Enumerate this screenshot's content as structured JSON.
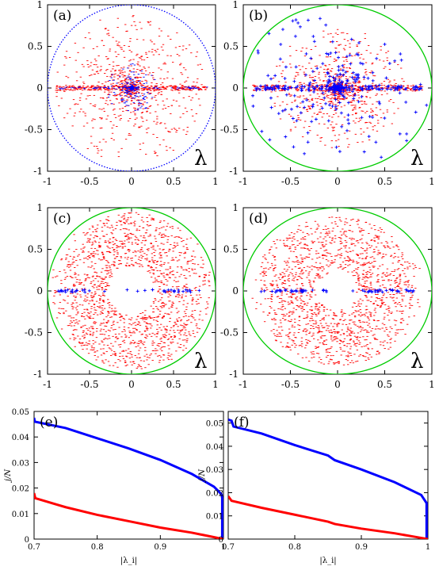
{
  "chart_data": [
    {
      "id": "a",
      "type": "scatter",
      "panel_label": "(a)",
      "corner_label": "λ",
      "xlim": [
        -1,
        1
      ],
      "ylim": [
        -1,
        1
      ],
      "xticks": [
        "-1",
        "-0.5",
        "0",
        "0.5",
        "1"
      ],
      "yticks": [
        "1",
        "0.5",
        "0",
        "-0.5",
        "-1"
      ],
      "circle": {
        "radius": 1,
        "color": "#0000ff"
      },
      "series": [
        {
          "color": "#ff0000",
          "marker": "dash",
          "spread": 0.75,
          "count": 1100,
          "core": 0.12
        },
        {
          "color": "#0000ff",
          "marker": "dash",
          "spread": 0.25,
          "count": 250,
          "core": 0.05
        }
      ]
    },
    {
      "id": "b",
      "type": "scatter",
      "panel_label": "(b)",
      "corner_label": "λ",
      "xlim": [
        -1,
        1
      ],
      "ylim": [
        -1,
        1
      ],
      "xticks": [
        "-1",
        "-0.5",
        "0",
        "0.5",
        "1"
      ],
      "yticks": [
        "1",
        "0.5",
        "0",
        "-0.5",
        "-1"
      ],
      "circle": {
        "radius": 1,
        "color": "#00cc00"
      },
      "series": [
        {
          "color": "#ff0000",
          "marker": "dash",
          "spread": 0.6,
          "count": 1100,
          "core": 0.15
        },
        {
          "color": "#0000ff",
          "marker": "plus",
          "spread": 0.95,
          "count": 380,
          "core": 0.1
        }
      ]
    },
    {
      "id": "c",
      "type": "scatter",
      "panel_label": "(c)",
      "corner_label": "λ",
      "xlim": [
        -1,
        1
      ],
      "ylim": [
        -1,
        1
      ],
      "xticks": [
        "-1",
        "-0.5",
        "0",
        "0.5",
        "1"
      ],
      "yticks": [
        "1",
        "0.5",
        "0",
        "-0.5",
        "-1"
      ],
      "circle": {
        "radius": 1,
        "color": "#00cc00"
      },
      "hole": 0.28,
      "series": [
        {
          "color": "#ff0000",
          "marker": "dash",
          "spread": 0.8,
          "count": 1500,
          "core": 0.0
        },
        {
          "color": "#0000ff",
          "marker": "plus",
          "spread": 0.9,
          "count": 40,
          "core": 0.0
        }
      ]
    },
    {
      "id": "d",
      "type": "scatter",
      "panel_label": "(d)",
      "corner_label": "λ",
      "xlim": [
        -1,
        1
      ],
      "ylim": [
        -1,
        1
      ],
      "xticks": [
        "-1",
        "-0.5",
        "0",
        "0.5",
        "1"
      ],
      "yticks": [
        "1",
        "0.5",
        "0",
        "-0.5",
        "-1"
      ],
      "circle": {
        "radius": 1,
        "color": "#00cc00"
      },
      "hole": 0.22,
      "series": [
        {
          "color": "#ff0000",
          "marker": "dash",
          "spread": 0.75,
          "count": 1500,
          "core": 0.0
        },
        {
          "color": "#0000ff",
          "marker": "plus",
          "spread": 0.85,
          "count": 60,
          "core": 0.0
        }
      ]
    },
    {
      "id": "e",
      "type": "line",
      "panel_label": "(e)",
      "xlabel": "|λ_i|",
      "ylabel": "j/N",
      "xlim": [
        0.7,
        1.0
      ],
      "ylim": [
        0,
        0.05
      ],
      "xticks": [
        "0.7",
        "0.8",
        "0.9",
        "1"
      ],
      "yticks": [
        "0.05",
        "0.04",
        "0.03",
        "0.02",
        "0.01",
        "0"
      ],
      "series": [
        {
          "color": "#0000ff",
          "x": [
            0.7,
            0.701,
            0.75,
            0.8,
            0.85,
            0.9,
            0.95,
            0.985,
            0.997,
            0.998,
            0.998
          ],
          "y": [
            0.0475,
            0.046,
            0.0435,
            0.0395,
            0.0355,
            0.031,
            0.0255,
            0.0205,
            0.0175,
            0.016,
            0
          ]
        },
        {
          "color": "#ff0000",
          "x": [
            0.7,
            0.702,
            0.75,
            0.8,
            0.85,
            0.9,
            0.95,
            0.98,
            1.0
          ],
          "y": [
            0.018,
            0.016,
            0.0125,
            0.0095,
            0.007,
            0.0045,
            0.0025,
            0.001,
            0
          ]
        }
      ]
    },
    {
      "id": "f",
      "type": "line",
      "panel_label": "(f)",
      "xlabel": "|λ_i|",
      "ylabel": "j/N",
      "xlim": [
        0.7,
        1.0
      ],
      "ylim": [
        0,
        0.055
      ],
      "xticks": [
        "0.7",
        "0.8",
        "0.9",
        "1"
      ],
      "yticks": [
        "0.05",
        "0.04",
        "0.03",
        "0.02",
        "0.01",
        "0"
      ],
      "series": [
        {
          "color": "#0000ff",
          "x": [
            0.7,
            0.705,
            0.708,
            0.75,
            0.8,
            0.85,
            0.86,
            0.9,
            0.95,
            0.99,
            0.998,
            0.998
          ],
          "y": [
            0.0515,
            0.051,
            0.0485,
            0.0455,
            0.0405,
            0.036,
            0.034,
            0.03,
            0.0245,
            0.019,
            0.0155,
            0
          ]
        },
        {
          "color": "#ff0000",
          "x": [
            0.7,
            0.705,
            0.75,
            0.8,
            0.85,
            0.86,
            0.9,
            0.95,
            0.98,
            1.0
          ],
          "y": [
            0.0185,
            0.0165,
            0.0135,
            0.0105,
            0.0075,
            0.0065,
            0.0045,
            0.0025,
            0.001,
            0
          ]
        }
      ]
    }
  ]
}
